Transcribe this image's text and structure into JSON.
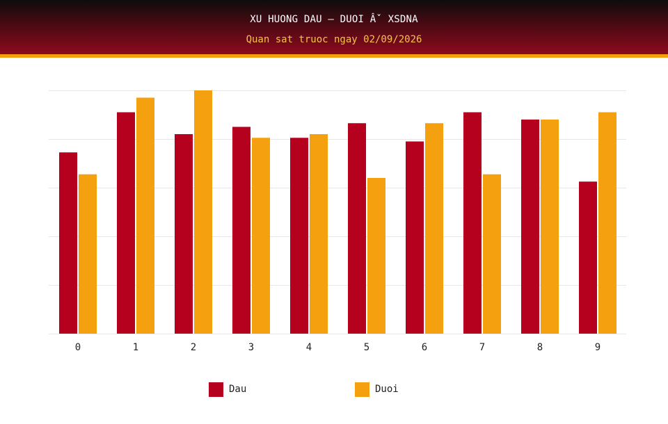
{
  "header": {
    "title": "XU HUONG DAU – DUOI Âˇ XSDNA",
    "subtitle": "Quan sat truoc ngay 02/09/2026"
  },
  "colors": {
    "header_top": "#0d0d0d",
    "header_bottom": "#8c0a1e",
    "header_border": "#f5a00f",
    "subtitle_text": "#f7c24a",
    "dau": "#b5001e",
    "duoi": "#f5a00f",
    "grid": "#e6e6e6"
  },
  "chart_data": {
    "type": "bar",
    "title": "XU HUONG DAU – DUOI Âˇ XSDNA",
    "subtitle": "Quan sat truoc ngay 02/09/2026",
    "categories": [
      "0",
      "1",
      "2",
      "3",
      "4",
      "5",
      "6",
      "7",
      "8",
      "9"
    ],
    "series": [
      {
        "name": "Dau",
        "color": "#b5001e",
        "values": [
          7.45,
          9.1,
          8.2,
          8.5,
          8.05,
          8.65,
          7.9,
          9.1,
          8.8,
          6.25
        ]
      },
      {
        "name": "Duoi",
        "color": "#f5a00f",
        "values": [
          6.55,
          9.7,
          10.0,
          8.05,
          8.2,
          6.4,
          8.65,
          6.55,
          8.8,
          9.1
        ]
      }
    ],
    "ylim": [
      0,
      10
    ],
    "y_gridlines": [
      0,
      2,
      4,
      6,
      8,
      10
    ],
    "y_tick_labels_shown": false,
    "grid": true,
    "legend_position": "bottom"
  }
}
